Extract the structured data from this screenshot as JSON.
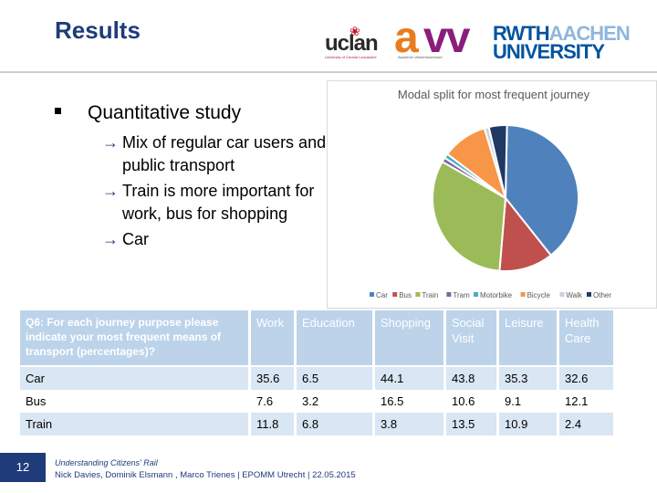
{
  "slide": {
    "title": "Results",
    "page_number": "12"
  },
  "logos": {
    "uclan": {
      "word": "uclan",
      "tagline": "University of Central Lancashire"
    },
    "avv": {
      "a": "a",
      "vv": "vv",
      "tagline": "Aachener Verkehrsverbund"
    },
    "rwth": {
      "part1": "RWTH",
      "part2": "AACHEN",
      "part3": "UNIVERSITY"
    }
  },
  "bullets": {
    "main": "Quantitative study",
    "arrow_glyph": "→",
    "sub": [
      "Mix of regular car users and public transport",
      "Train is more important for work, bus for shopping",
      "Car"
    ]
  },
  "chart_data": {
    "type": "pie",
    "title": "Modal split for most frequent journey",
    "slices": [
      {
        "label": "Car",
        "value": 39,
        "color": "#4f81bd"
      },
      {
        "label": "Bus",
        "value": 12,
        "color": "#c0504d"
      },
      {
        "label": "Train",
        "value": 32,
        "color": "#9bbb59"
      },
      {
        "label": "Tram",
        "value": 1,
        "color": "#8064a2"
      },
      {
        "label": "Motorbike",
        "value": 1,
        "color": "#4bacc6"
      },
      {
        "label": "Bicycle",
        "value": 10,
        "color": "#f79646"
      },
      {
        "label": "Walk",
        "value": 1,
        "color": "#c6d3e4"
      },
      {
        "label": "Other",
        "value": 4,
        "color": "#1f3864"
      }
    ],
    "legend_position": "bottom"
  },
  "table": {
    "question": "Q6: For each journey purpose please indicate your most frequent means of transport (percentages)?",
    "columns": [
      "Work",
      "Education",
      "Shopping",
      "Social Visit",
      "Leisure",
      "Health Care"
    ],
    "rows": [
      {
        "mode": "Car",
        "values": [
          "35.6",
          "6.5",
          "44.1",
          "43.8",
          "35.3",
          "32.6"
        ]
      },
      {
        "mode": "Bus",
        "values": [
          "7.6",
          "3.2",
          "16.5",
          "10.6",
          "9.1",
          "12.1"
        ]
      },
      {
        "mode": "Train",
        "values": [
          "11.8",
          "6.8",
          "3.8",
          "13.5",
          "10.9",
          "2.4"
        ]
      }
    ]
  },
  "footer": {
    "line1": "Understanding Citizens' Rail",
    "line2": "Nick Davies, Dominik Elsmann , Marco Trienes | EPOMM Utrecht | 22.05.2015"
  }
}
